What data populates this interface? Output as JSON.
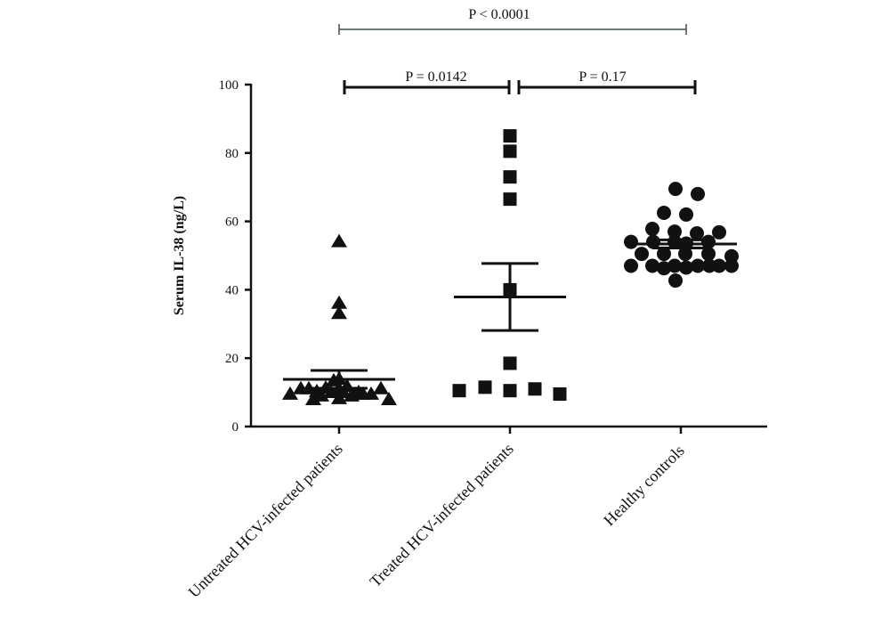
{
  "chart_data": {
    "type": "scatter",
    "title": "",
    "xlabel": "",
    "ylabel": "Serum IL-38 (ng/L)",
    "ylim": [
      0,
      100
    ],
    "yticks": [
      0,
      20,
      40,
      60,
      80,
      100
    ],
    "grid": false,
    "legend": "none",
    "categories": [
      "Untreated HCV-infected patients",
      "Treated HCV-infected patients",
      "Healthy controls"
    ],
    "groups": [
      {
        "marker": "triangle",
        "values": [
          54,
          36,
          33,
          9.4,
          11,
          11,
          7.8,
          10.2,
          8.9,
          11.2,
          9.9,
          13.3,
          11,
          8.1,
          13.8,
          9.9,
          11.7,
          8.9,
          9.4,
          9.9,
          9.4,
          9.4,
          11,
          7.8
        ],
        "mean": 13.8,
        "sem": [
          11.2,
          16.4
        ]
      },
      {
        "marker": "square",
        "values": [
          85,
          80.5,
          73,
          66.5,
          40,
          18.5,
          11.5,
          10.5,
          10.5,
          11,
          9.5
        ],
        "mean": 37.9,
        "sem": [
          28.1,
          47.7
        ]
      },
      {
        "marker": "circle",
        "values": [
          69.5,
          68,
          62.5,
          62,
          57.8,
          57,
          56.5,
          56.8,
          54,
          54,
          54,
          53.5,
          54,
          50.5,
          50.5,
          50.5,
          50.5,
          49.8,
          47,
          47,
          46.3,
          47,
          46.5,
          47,
          47,
          47,
          47,
          42.7
        ],
        "mean": 53.4,
        "sem": [
          52.2,
          54.6
        ]
      }
    ],
    "comparisons": [
      {
        "groups": [
          0,
          2
        ],
        "label": "P < 0.0001"
      },
      {
        "groups": [
          0,
          1
        ],
        "label": "P = 0.0142"
      },
      {
        "groups": [
          1,
          2
        ],
        "label": "P = 0.17"
      }
    ],
    "colors": {
      "markers": "#111111",
      "axes": "#111111",
      "bracket_top": "#3f4d4d"
    }
  }
}
